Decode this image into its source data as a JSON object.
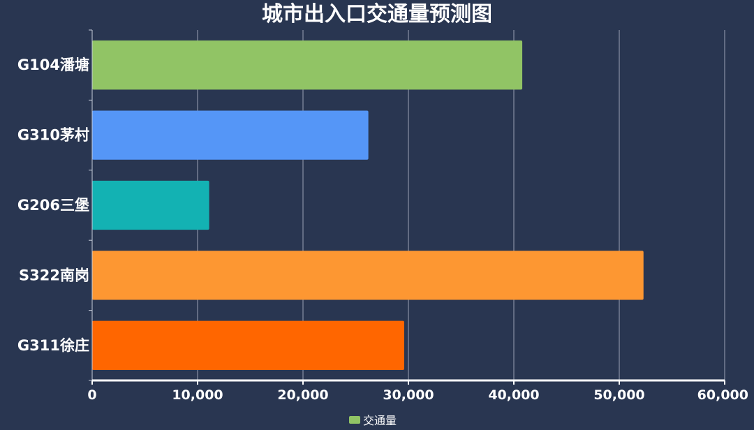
{
  "chart_data": {
    "type": "bar",
    "orientation": "horizontal",
    "title": "城市出入口交通量预测图",
    "categories": [
      "G104潘塘",
      "G310茅村",
      "G206三堡",
      "S322南岗",
      "G311徐庄"
    ],
    "series": [
      {
        "name": "交通量",
        "values": [
          40800,
          26200,
          11100,
          52300,
          29600
        ]
      }
    ],
    "bar_colors": [
      "#91c465",
      "#5596f7",
      "#13b2b3",
      "#fd9732",
      "#ff6600"
    ],
    "legend_color": "#91c465",
    "xlim": [
      0,
      60000
    ],
    "xticks": [
      0,
      10000,
      20000,
      30000,
      40000,
      50000,
      60000
    ],
    "xtick_labels": [
      "0",
      "10,000",
      "20,000",
      "30,000",
      "40,000",
      "50,000",
      "60,000"
    ],
    "grid": "vertical",
    "legend": "bottom-center"
  }
}
